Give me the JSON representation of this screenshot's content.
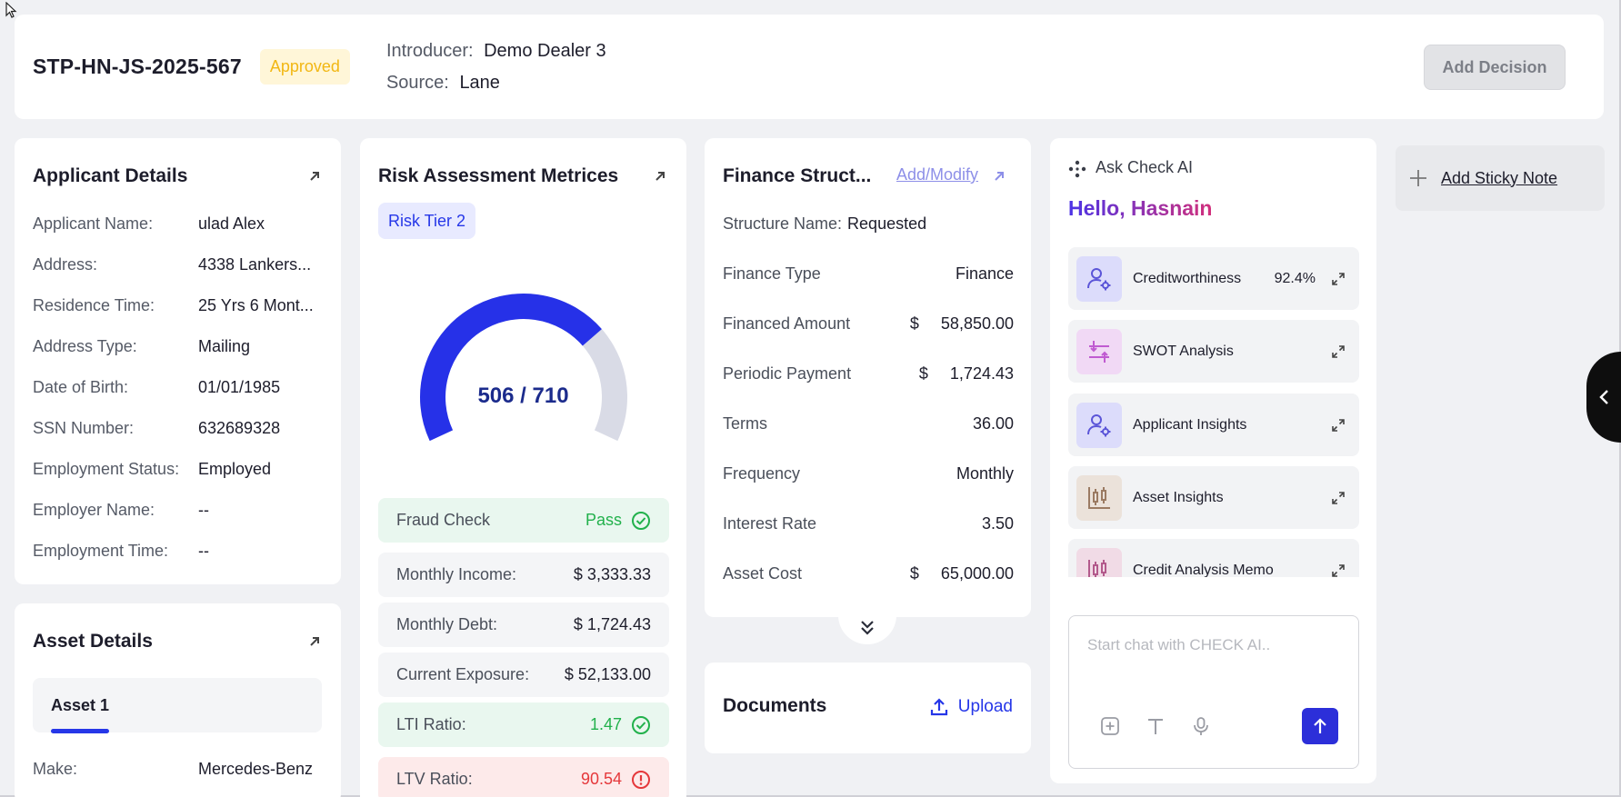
{
  "header": {
    "app_id": "STP-HN-JS-2025-567",
    "status": "Approved",
    "introducer_label": "Introducer:",
    "introducer_value": "Demo Dealer 3",
    "source_label": "Source:",
    "source_value": "Lane",
    "add_decision": "Add Decision"
  },
  "applicant": {
    "title": "Applicant Details",
    "rows": [
      {
        "label": "Applicant Name:",
        "value": "ulad Alex"
      },
      {
        "label": "Address:",
        "value": "4338 Lankers..."
      },
      {
        "label": "Residence Time:",
        "value": "25 Yrs 6 Mont..."
      },
      {
        "label": "Address Type:",
        "value": "Mailing"
      },
      {
        "label": "Date of Birth:",
        "value": "01/01/1985"
      },
      {
        "label": "SSN Number:",
        "value": "632689328"
      },
      {
        "label": "Employment Status:",
        "value": "Employed"
      },
      {
        "label": "Employer Name:",
        "value": "--"
      },
      {
        "label": "Employment Time:",
        "value": "--"
      }
    ]
  },
  "asset": {
    "title": "Asset Details",
    "tab": "Asset 1",
    "make_label": "Make:",
    "make_value": "Mercedes-Benz"
  },
  "risk": {
    "title": "Risk Assessment Metrices",
    "tier": "Risk Tier 2",
    "score": 506,
    "max_score": 710,
    "score_text": "506 / 710",
    "metrics": [
      {
        "label": "Fraud Check",
        "value": "Pass",
        "state": "ok"
      },
      {
        "label": "Monthly Income:",
        "value": "$ 3,333.33",
        "state": "neutral"
      },
      {
        "label": "Monthly Debt:",
        "value": "$ 1,724.43",
        "state": "neutral"
      },
      {
        "label": "Current Exposure:",
        "value": "$ 52,133.00",
        "state": "neutral"
      },
      {
        "label": "LTI Ratio:",
        "value": "1.47",
        "state": "ok"
      },
      {
        "label": "LTV Ratio:",
        "value": "90.54",
        "state": "bad"
      }
    ],
    "colors": {
      "gauge_fill": "#2631e8",
      "gauge_track": "#d9dbe6"
    }
  },
  "finance": {
    "title": "Finance Struct...",
    "add_modify": "Add/Modify",
    "structure_label": "Structure Name:",
    "structure_value": "Requested",
    "rows": [
      {
        "label": "Finance Type",
        "currency": "",
        "value": "Finance"
      },
      {
        "label": "Financed Amount",
        "currency": "$",
        "value": "58,850.00"
      },
      {
        "label": "Periodic Payment",
        "currency": "$",
        "value": "1,724.43"
      },
      {
        "label": "Terms",
        "currency": "",
        "value": "36.00"
      },
      {
        "label": "Frequency",
        "currency": "",
        "value": "Monthly"
      },
      {
        "label": "Interest Rate",
        "currency": "",
        "value": "3.50"
      },
      {
        "label": "Asset Cost",
        "currency": "$",
        "value": "65,000.00"
      }
    ]
  },
  "documents": {
    "title": "Documents",
    "upload": "Upload"
  },
  "ai": {
    "title": "Ask Check AI",
    "greeting": "Hello, Hasnain",
    "items": [
      {
        "label": "Creditworthiness",
        "value": "92.4%",
        "icon": "user-gear-icon"
      },
      {
        "label": "SWOT Analysis",
        "value": "",
        "icon": "sliders-arrows-icon"
      },
      {
        "label": "Applicant Insights",
        "value": "",
        "icon": "user-gear-icon"
      },
      {
        "label": "Asset Insights",
        "value": "",
        "icon": "candlestick-chart-icon"
      },
      {
        "label": "Credit Analysis Memo",
        "value": "",
        "icon": "candlestick-chart-icon"
      }
    ],
    "chat_placeholder": "Start chat with CHECK AI.."
  },
  "sticky": {
    "label": "Add Sticky Note"
  }
}
